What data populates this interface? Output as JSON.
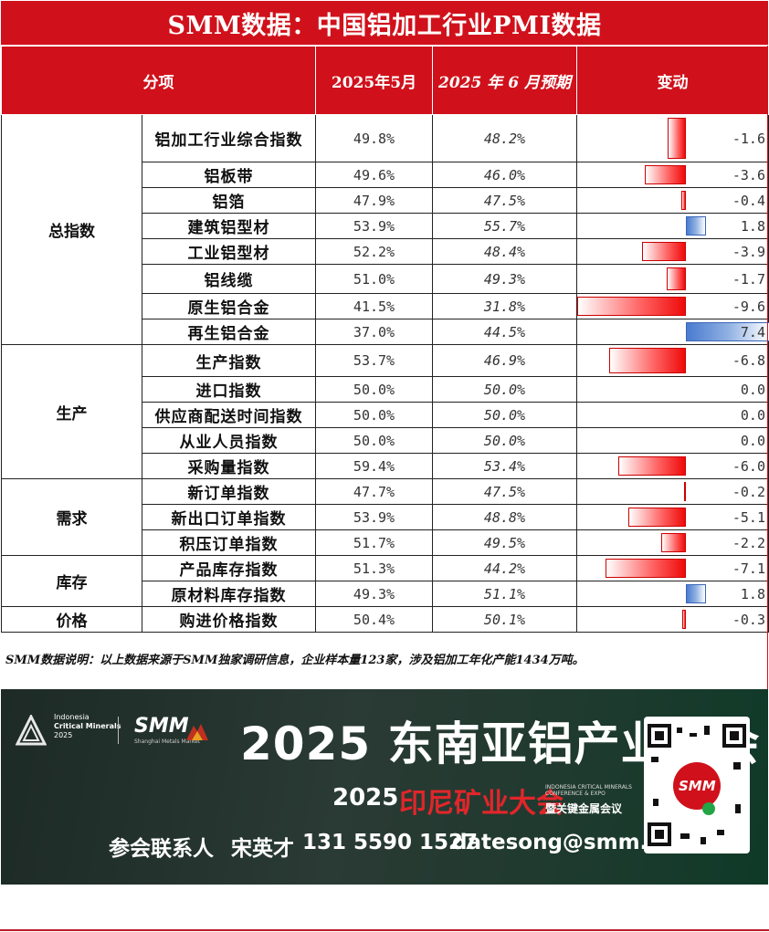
{
  "title": "SMM数据：中国铝加工行业PMI数据",
  "headers": {
    "category": "分项",
    "may": "2025年5月",
    "june": "2025 年 6 月预期",
    "change": "变动"
  },
  "groups": [
    {
      "category": "总指数",
      "rows": [
        {
          "name": "铝加工行业综合指数",
          "may": "49.8%",
          "june": "48.2%",
          "change": "-1.6",
          "delta": -1.6
        },
        {
          "name": "铝板带",
          "may": "49.6%",
          "june": "46.0%",
          "change": "-3.6",
          "delta": -3.6
        },
        {
          "name": "铝箔",
          "may": "47.9%",
          "june": "47.5%",
          "change": "-0.4",
          "delta": -0.4
        },
        {
          "name": "建筑铝型材",
          "may": "53.9%",
          "june": "55.7%",
          "change": "1.8",
          "delta": 1.8
        },
        {
          "name": "工业铝型材",
          "may": "52.2%",
          "june": "48.4%",
          "change": "-3.9",
          "delta": -3.9
        },
        {
          "name": "铝线缆",
          "may": "51.0%",
          "june": "49.3%",
          "change": "-1.7",
          "delta": -1.7
        },
        {
          "name": "原生铝合金",
          "may": "41.5%",
          "june": "31.8%",
          "change": "-9.6",
          "delta": -9.6
        },
        {
          "name": "再生铝合金",
          "may": "37.0%",
          "june": "44.5%",
          "change": "7.4",
          "delta": 7.4
        }
      ]
    },
    {
      "category": "生产",
      "rows": [
        {
          "name": "生产指数",
          "may": "53.7%",
          "june": "46.9%",
          "change": "-6.8",
          "delta": -6.8
        },
        {
          "name": "进口指数",
          "may": "50.0%",
          "june": "50.0%",
          "change": "0.0",
          "delta": 0
        },
        {
          "name": "供应商配送时间指数",
          "may": "50.0%",
          "june": "50.0%",
          "change": "0.0",
          "delta": 0
        },
        {
          "name": "从业人员指数",
          "may": "50.0%",
          "june": "50.0%",
          "change": "0.0",
          "delta": 0
        },
        {
          "name": "采购量指数",
          "may": "59.4%",
          "june": "53.4%",
          "change": "-6.0",
          "delta": -6.0
        }
      ]
    },
    {
      "category": "需求",
      "rows": [
        {
          "name": "新订单指数",
          "may": "47.7%",
          "june": "47.5%",
          "change": "-0.2",
          "delta": -0.2
        },
        {
          "name": "新出口订单指数",
          "may": "53.9%",
          "june": "48.8%",
          "change": "-5.1",
          "delta": -5.1
        },
        {
          "name": "积压订单指数",
          "may": "51.7%",
          "june": "49.5%",
          "change": "-2.2",
          "delta": -2.2
        }
      ]
    },
    {
      "category": "库存",
      "rows": [
        {
          "name": "产品库存指数",
          "may": "51.3%",
          "june": "44.2%",
          "change": "-7.1",
          "delta": -7.1
        },
        {
          "name": "原材料库存指数",
          "may": "49.3%",
          "june": "51.1%",
          "change": "1.8",
          "delta": 1.8
        }
      ]
    },
    {
      "category": "价格",
      "rows": [
        {
          "name": "购进价格指数",
          "may": "50.4%",
          "june": "50.1%",
          "change": "-0.3",
          "delta": -0.3
        }
      ]
    }
  ],
  "note": "SMM数据说明：以上数据来源于SMM独家调研信息，企业样本量123家，涉及铝加工年化产能1434万吨。",
  "banner": {
    "logo_text_1": "Indonesia",
    "logo_text_2": "Critical Minerals",
    "logo_text_3": "2025",
    "smm_logo": "SMM",
    "smm_sub": "Shanghai Metals Market",
    "headline": "2025 东南亚铝产业大会",
    "subline_year": "2025",
    "subline_name": "印尼矿业大会",
    "subline_small": "INDONESIA CRITICAL MINERALS CONFERENCE & EXPO",
    "subline_tail": "暨关键金属会议",
    "contact_label": "参会联系人",
    "contact_name": "宋英才",
    "contact_phone": "131 5590 1527",
    "contact_email": "datesong@smm.cn",
    "qr_logo": "SMM"
  },
  "colors": {
    "header_red": "#d0111b",
    "neg_bar": "#ee0a0a",
    "pos_bar": "#4a7bd0"
  }
}
